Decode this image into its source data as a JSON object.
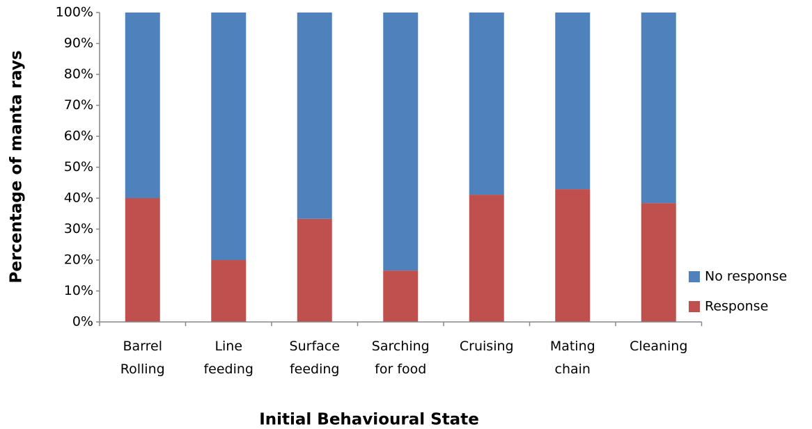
{
  "chart_data": {
    "type": "stacked_bar",
    "x_label": "Initial Behavioural State",
    "y_label": "Percentage of manta rays",
    "categories": [
      "Barrel\nRolling",
      "Line\nfeeding",
      "Surface\nfeeding",
      "Sarching\nfor food",
      "Cruising",
      "Mating\nchain",
      "Cleaning"
    ],
    "series": [
      {
        "name": "Response",
        "color": "#c0504d",
        "values": [
          40,
          20,
          33.3,
          16.6,
          41.1,
          42.9,
          38.4
        ]
      },
      {
        "name": "No response",
        "color": "#4f81bd",
        "values": [
          60,
          80,
          66.7,
          83.4,
          58.9,
          57.1,
          61.6
        ]
      }
    ],
    "ylim": [
      0,
      100
    ],
    "yticks": [
      {
        "value": 0,
        "label": "0%"
      },
      {
        "value": 10,
        "label": "10%"
      },
      {
        "value": 20,
        "label": "20%"
      },
      {
        "value": 30,
        "label": "30%"
      },
      {
        "value": 40,
        "label": "40%"
      },
      {
        "value": 50,
        "label": "50%"
      },
      {
        "value": 60,
        "label": "60%"
      },
      {
        "value": 70,
        "label": "70%"
      },
      {
        "value": 80,
        "label": "80%"
      },
      {
        "value": 90,
        "label": "90%"
      },
      {
        "value": 100,
        "label": "100%"
      }
    ],
    "grid": false,
    "legend": "right"
  }
}
